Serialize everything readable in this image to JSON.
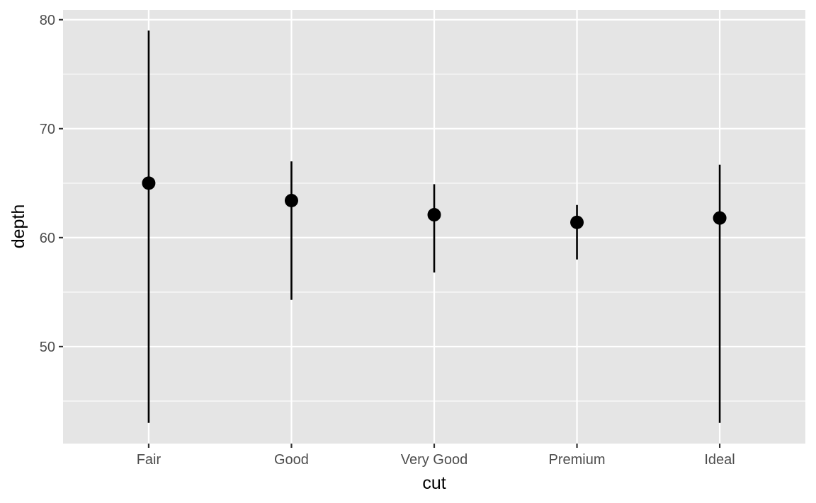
{
  "chart_data": {
    "type": "pointrange",
    "xlabel": "cut",
    "ylabel": "depth",
    "categories": [
      "Fair",
      "Good",
      "Very Good",
      "Premium",
      "Ideal"
    ],
    "points": [
      {
        "category": "Fair",
        "y": 65.0,
        "ymin": 43.0,
        "ymax": 79.0
      },
      {
        "category": "Good",
        "y": 63.4,
        "ymin": 54.3,
        "ymax": 67.0
      },
      {
        "category": "Very Good",
        "y": 62.1,
        "ymin": 56.8,
        "ymax": 64.9
      },
      {
        "category": "Premium",
        "y": 61.4,
        "ymin": 58.0,
        "ymax": 63.0
      },
      {
        "category": "Ideal",
        "y": 61.8,
        "ymin": 43.0,
        "ymax": 66.7
      }
    ],
    "ylim": [
      41.1,
      80.9
    ],
    "yticks": [
      50,
      60,
      70,
      80
    ],
    "grid": true,
    "colors": {
      "panel": "#e5e5e5",
      "grid": "#ffffff",
      "marks": "#000000"
    }
  }
}
